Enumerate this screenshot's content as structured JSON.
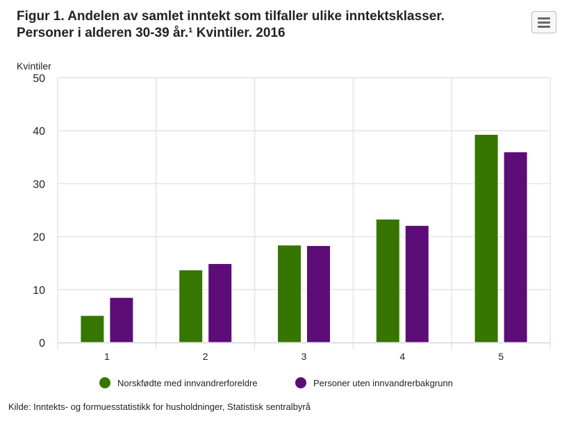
{
  "title_line1": "Figur 1. Andelen av samlet inntekt som tilfaller ulike inntektsklasser.",
  "title_line2": "Personer i alderen 30-39 år.¹ Kvintiler. 2016",
  "menu_icon": "hamburger-icon",
  "source": "Kilde: Inntekts- og formuesstatistikk for husholdninger, Statistisk sentralbyrå",
  "chart_data": {
    "type": "bar",
    "title": "Figur 1. Andelen av samlet inntekt som tilfaller ulike inntektsklasser. Personer i alderen 30-39 år.¹ Kvintiler. 2016",
    "ylabel": "Kvintiler",
    "xlabel": "",
    "ylim": [
      0,
      50
    ],
    "yticks": [
      "0",
      "10",
      "20",
      "30",
      "40",
      "50"
    ],
    "categories": [
      "1",
      "2",
      "3",
      "4",
      "5"
    ],
    "series": [
      {
        "name": "Norskfødte med innvandrerforeldre",
        "color": "#367600",
        "values": [
          5.1,
          13.7,
          18.4,
          23.3,
          39.3
        ]
      },
      {
        "name": "Personer uten innvandrerbakgrunn",
        "color": "#5c0d77",
        "values": [
          8.5,
          14.9,
          18.3,
          22.1,
          36.0
        ]
      }
    ],
    "grid": true,
    "legend": "bottom"
  }
}
